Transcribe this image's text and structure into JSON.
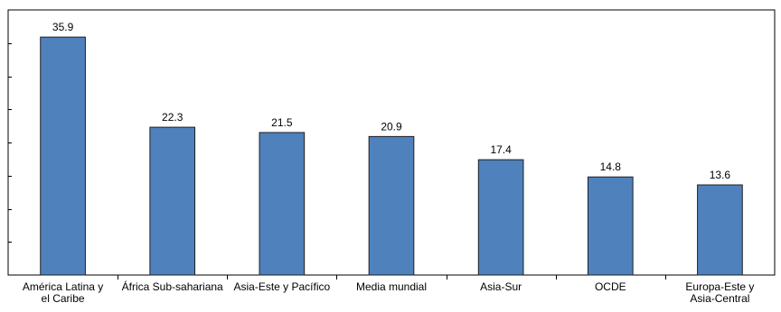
{
  "chart_data": {
    "type": "bar",
    "categories": [
      [
        "América Latina y",
        "el Caribe"
      ],
      [
        "África Sub-sahariana"
      ],
      [
        "Asia-Este y Pacífico"
      ],
      [
        "Media mundial"
      ],
      [
        "Asia-Sur"
      ],
      [
        "OCDE"
      ],
      [
        "Europa-Este y",
        "Asia-Central"
      ]
    ],
    "values": [
      35.9,
      22.3,
      21.5,
      20.9,
      17.4,
      14.8,
      13.6
    ],
    "value_labels": [
      "35.9",
      "22.3",
      "21.5",
      "20.9",
      "17.4",
      "14.8",
      "13.6"
    ],
    "ylim": [
      0,
      40
    ],
    "ytick_count": 8,
    "y_tick_labels_shown": false,
    "grid": false,
    "legend": "none",
    "bar_color": "#4f81bd",
    "bar_edge_color": "#1f1f1f"
  }
}
